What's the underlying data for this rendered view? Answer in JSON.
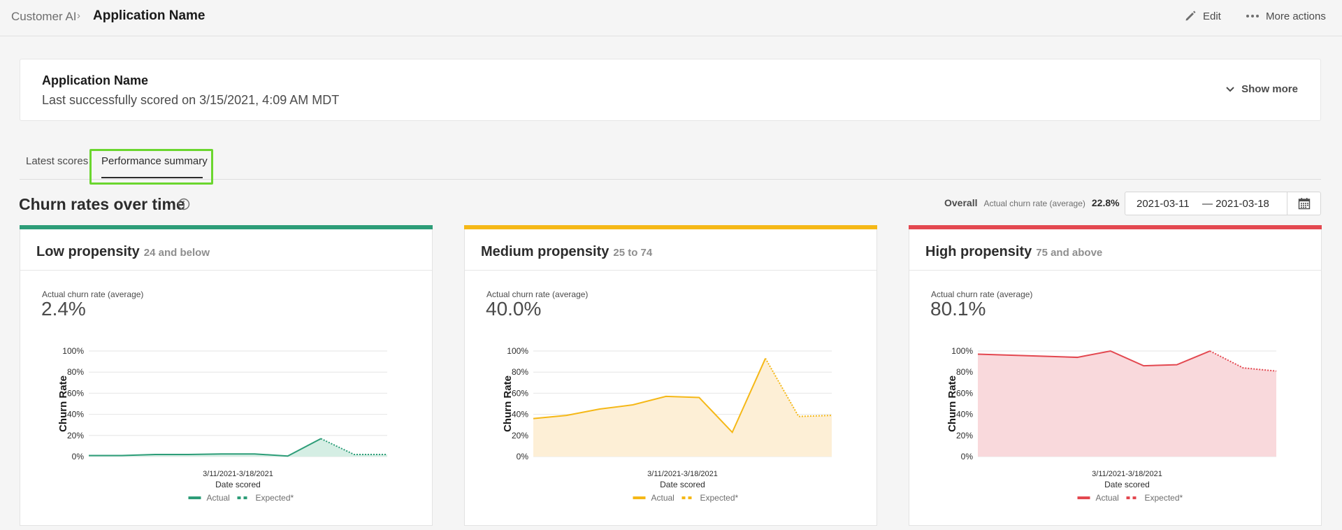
{
  "breadcrumb": {
    "root": "Customer AI",
    "current": "Application Name"
  },
  "actions": {
    "edit": "Edit",
    "more": "More actions"
  },
  "app_card": {
    "title": "Application Name",
    "subtitle": "Last successfully scored on 3/15/2021, 4:09 AM MDT",
    "show_more": "Show more"
  },
  "tabs": [
    {
      "label": "Latest scores",
      "selected": false
    },
    {
      "label": "Performance summary",
      "selected": true
    }
  ],
  "section": {
    "title": "Churn rates over time",
    "overall_label": "Overall",
    "overall_sub": "Actual churn rate (average)",
    "overall_value": "22.8%",
    "date_start": "2021-03-11",
    "date_end": "— 2021-03-18"
  },
  "colors": {
    "low": "#2d9d78",
    "medium": "#f5b817",
    "high": "#e34850",
    "highlight": "#6bd62f"
  },
  "cards": [
    {
      "title": "Low propensity",
      "range": "24 and below",
      "rate_label": "Actual churn rate (average)",
      "rate_value": "2.4%"
    },
    {
      "title": "Medium propensity",
      "range": "25 to 74",
      "rate_label": "Actual churn rate (average)",
      "rate_value": "40.0%"
    },
    {
      "title": "High propensity",
      "range": "75 and above",
      "rate_label": "Actual churn rate (average)",
      "rate_value": "80.1%"
    }
  ],
  "chart_data": [
    {
      "type": "area",
      "ylabel": "Churn Rate",
      "xlabel": "Date scored",
      "x_tick": "3/11/2021-3/18/2021",
      "yticks": [
        "100%",
        "80%",
        "60%",
        "40%",
        "20%",
        "0%"
      ],
      "ylim": [
        0,
        100
      ],
      "color": "#2d9d78",
      "fill": "#d5eee4",
      "legend": [
        "Actual",
        "Expected*"
      ],
      "actual": [
        1,
        1,
        2,
        2,
        2.5,
        2.5,
        0.5,
        17
      ],
      "expected": [
        17,
        2,
        2
      ]
    },
    {
      "type": "area",
      "ylabel": "Churn Rate",
      "xlabel": "Date scored",
      "x_tick": "3/11/2021-3/18/2021",
      "yticks": [
        "100%",
        "80%",
        "60%",
        "40%",
        "20%",
        "0%"
      ],
      "ylim": [
        0,
        100
      ],
      "color": "#f5b817",
      "fill": "#fdefd6",
      "legend": [
        "Actual",
        "Expected*"
      ],
      "actual": [
        36,
        39,
        45,
        49,
        57,
        56,
        23,
        93
      ],
      "expected": [
        93,
        38,
        39
      ]
    },
    {
      "type": "area",
      "ylabel": "Churn Rate",
      "xlabel": "Date scored",
      "x_tick": "3/11/2021-3/18/2021",
      "yticks": [
        "100%",
        "80%",
        "60%",
        "40%",
        "20%",
        "0%"
      ],
      "ylim": [
        0,
        100
      ],
      "color": "#e34850",
      "fill": "#f9d9dc",
      "legend": [
        "Actual",
        "Expected*"
      ],
      "actual": [
        97,
        96,
        95,
        94,
        100,
        86,
        87,
        100
      ],
      "expected": [
        100,
        84,
        81
      ]
    }
  ]
}
